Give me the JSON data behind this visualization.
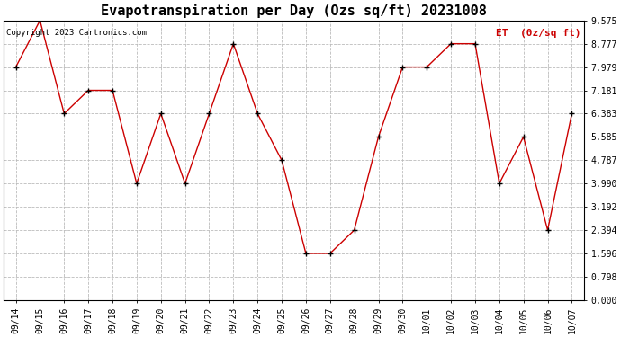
{
  "title": "Evapotranspiration per Day (Ozs sq/ft) 20231008",
  "copyright": "Copyright 2023 Cartronics.com",
  "legend_label": "ET  (0z/sq ft)",
  "x_labels": [
    "09/14",
    "09/15",
    "09/16",
    "09/17",
    "09/18",
    "09/19",
    "09/20",
    "09/21",
    "09/22",
    "09/23",
    "09/24",
    "09/25",
    "09/26",
    "09/27",
    "09/28",
    "09/29",
    "09/30",
    "10/01",
    "10/02",
    "10/03",
    "10/04",
    "10/05",
    "10/06",
    "10/07"
  ],
  "y_values": [
    7.979,
    9.575,
    6.383,
    7.181,
    7.181,
    3.99,
    6.383,
    3.99,
    6.383,
    8.777,
    6.383,
    4.787,
    1.596,
    1.596,
    2.394,
    5.585,
    7.979,
    7.979,
    8.777,
    8.777,
    3.99,
    5.585,
    2.394,
    6.383
  ],
  "y_ticks": [
    0.0,
    0.798,
    1.596,
    2.394,
    3.192,
    3.99,
    4.787,
    5.585,
    6.383,
    7.181,
    7.979,
    8.777,
    9.575
  ],
  "y_min": 0.0,
  "y_max": 9.575,
  "line_color": "#cc0000",
  "marker_color": "#000000",
  "grid_color": "#bbbbbb",
  "background_color": "#ffffff",
  "title_fontsize": 11,
  "copyright_fontsize": 6.5,
  "legend_fontsize": 8,
  "tick_fontsize": 7
}
